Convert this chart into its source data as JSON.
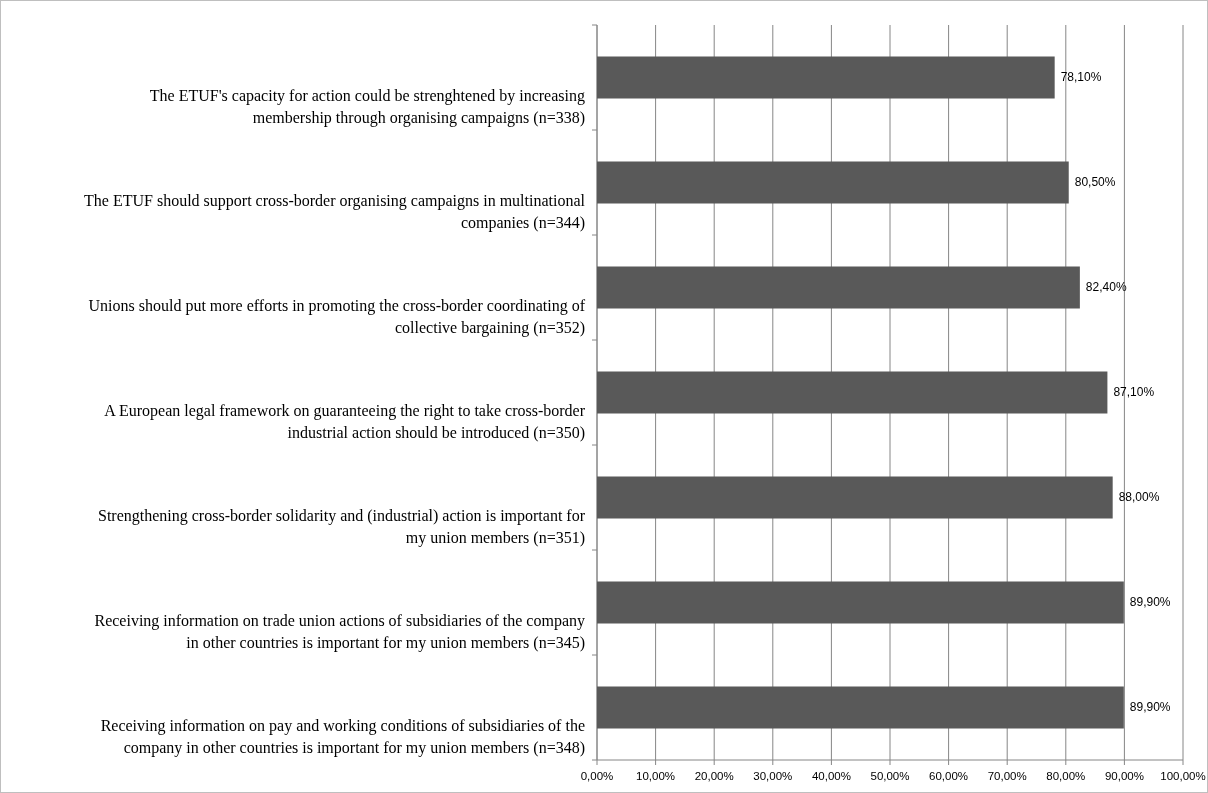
{
  "chart_data": {
    "type": "bar",
    "orientation": "horizontal",
    "categories": [
      "The ETUF's capacity for action could be strenghtened by increasing membership through organising campaigns (n=338)",
      "The ETUF should support cross-border organising campaigns in multinational companies (n=344)",
      "Unions should put more efforts in promoting the cross-border coordinating of collective bargaining (n=352)",
      "A European legal framework on guaranteeing the right to take cross-border industrial action should be introduced (n=350)",
      "Strengthening cross-border solidarity and (industrial) action is important for my union members (n=351)",
      "Receiving information on trade union actions of subsidiaries of the company in other countries is important for my union members (n=345)",
      "Receiving information on pay and working conditions of subsidiaries of the company in other countries is important for my union members (n=348)"
    ],
    "values": [
      78.1,
      80.5,
      82.4,
      87.1,
      88.0,
      89.9,
      89.9
    ],
    "value_labels": [
      "78,10%",
      "80,50%",
      "82,40%",
      "87,10%",
      "88,00%",
      "89,90%",
      "89,90%"
    ],
    "color": "#595959",
    "xlim": [
      0,
      100
    ],
    "xticks": [
      {
        "value": 0,
        "label": "0,00%"
      },
      {
        "value": 10,
        "label": "10,00%"
      },
      {
        "value": 20,
        "label": "20,00%"
      },
      {
        "value": 30,
        "label": "30,00%"
      },
      {
        "value": 40,
        "label": "40,00%"
      },
      {
        "value": 50,
        "label": "50,00%"
      },
      {
        "value": 60,
        "label": "60,00%"
      },
      {
        "value": 70,
        "label": "70,00%"
      },
      {
        "value": 80,
        "label": "80,00%"
      },
      {
        "value": 90,
        "label": "90,00%"
      },
      {
        "value": 100,
        "label": "100,00%"
      }
    ],
    "grid": "x"
  }
}
